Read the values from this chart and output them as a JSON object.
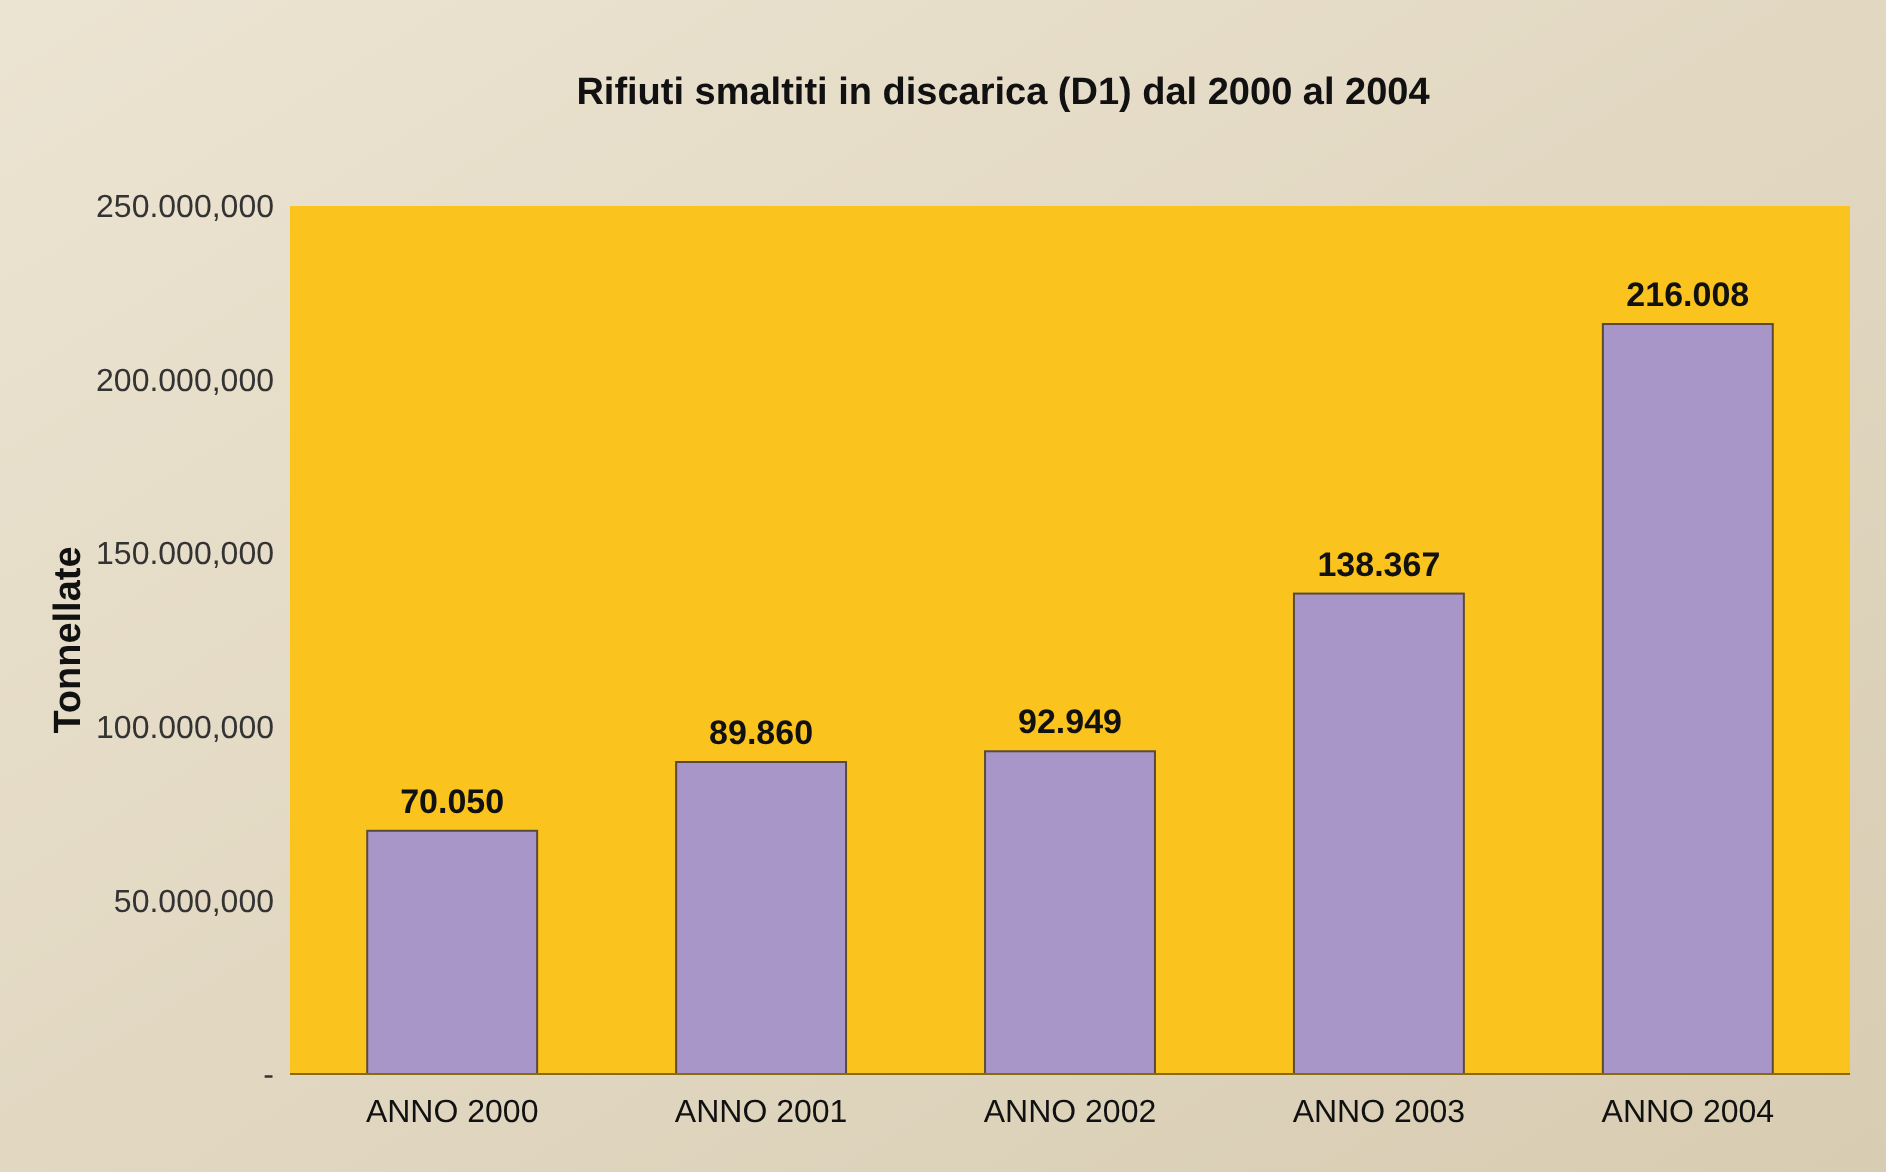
{
  "chart_data": {
    "type": "bar",
    "title": "Rifiuti smaltiti in discarica (D1) dal 2000 al 2004",
    "ylabel": "Tonnellate",
    "categories": [
      "ANNO 2000",
      "ANNO 2001",
      "ANNO 2002",
      "ANNO 2003",
      "ANNO 2004"
    ],
    "values": [
      70050,
      89860,
      92949,
      138367,
      216008
    ],
    "value_labels": [
      "70.050",
      "89.860",
      "92.949",
      "138.367",
      "216.008"
    ],
    "color": "#a996c9",
    "ylim": [
      0,
      250000
    ],
    "yticks": [
      {
        "value": 0,
        "label": "-"
      },
      {
        "value": 50000,
        "label": "50.000,000"
      },
      {
        "value": 100000,
        "label": "100.000,000"
      },
      {
        "value": 150000,
        "label": "150.000,000"
      },
      {
        "value": 200000,
        "label": "200.000,000"
      },
      {
        "value": 250000,
        "label": "250.000,000"
      }
    ],
    "grid": false
  }
}
